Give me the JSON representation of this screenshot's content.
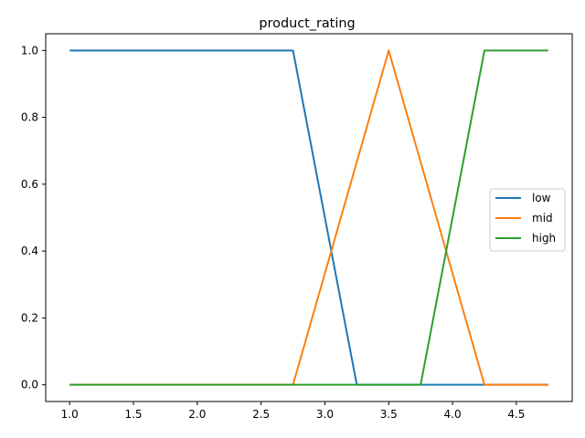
{
  "chart_data": {
    "type": "line",
    "title": "product_rating",
    "xlabel": "",
    "ylabel": "",
    "xlim": [
      0.8125,
      4.9375
    ],
    "ylim": [
      -0.05,
      1.05
    ],
    "xticks": [
      "1.0",
      "1.5",
      "2.0",
      "2.5",
      "3.0",
      "3.5",
      "4.0",
      "4.5"
    ],
    "yticks": [
      "0.0",
      "0.2",
      "0.4",
      "0.6",
      "0.8",
      "1.0"
    ],
    "grid": false,
    "legend_position": "center-right",
    "series": [
      {
        "name": "low",
        "color": "#1f77b4",
        "points": [
          [
            1.0,
            1.0
          ],
          [
            2.75,
            1.0
          ],
          [
            3.25,
            0.0
          ],
          [
            4.75,
            0.0
          ]
        ]
      },
      {
        "name": "mid",
        "color": "#ff7f0e",
        "points": [
          [
            1.0,
            0.0
          ],
          [
            2.75,
            0.0
          ],
          [
            3.5,
            1.0
          ],
          [
            4.25,
            0.0
          ],
          [
            4.75,
            0.0
          ]
        ]
      },
      {
        "name": "high",
        "color": "#2ca02c",
        "points": [
          [
            1.0,
            0.0
          ],
          [
            3.75,
            0.0
          ],
          [
            4.25,
            1.0
          ],
          [
            4.75,
            1.0
          ]
        ]
      }
    ]
  }
}
